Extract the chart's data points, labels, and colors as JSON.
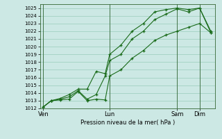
{
  "ylabel": "Pression niveau de la mer( hPa )",
  "bg_color": "#cce8e4",
  "grid_color": "#99ccbb",
  "line_color": "#1a6b1a",
  "ylim": [
    1012,
    1025.5
  ],
  "yticks": [
    1012,
    1013,
    1014,
    1015,
    1016,
    1017,
    1018,
    1019,
    1020,
    1021,
    1022,
    1023,
    1024,
    1025
  ],
  "xtick_labels": [
    "Ven",
    "Lun",
    "Sam",
    "Dim"
  ],
  "xtick_positions": [
    0.05,
    3.0,
    6.0,
    7.0
  ],
  "xlim": [
    -0.1,
    7.7
  ],
  "line1_x": [
    0.05,
    0.4,
    0.8,
    1.2,
    1.6,
    2.0,
    2.4,
    2.8,
    3.0,
    3.5,
    4.0,
    4.5,
    5.0,
    5.5,
    6.0,
    6.5,
    7.0,
    7.5
  ],
  "line1_y": [
    1012.2,
    1013.0,
    1013.1,
    1013.2,
    1014.2,
    1013.0,
    1013.2,
    1013.1,
    1016.2,
    1017.0,
    1018.5,
    1019.5,
    1020.8,
    1021.5,
    1022.0,
    1022.5,
    1023.0,
    1021.8
  ],
  "line2_x": [
    0.05,
    0.4,
    0.8,
    1.2,
    1.6,
    2.0,
    2.4,
    2.8,
    3.0,
    3.5,
    4.0,
    4.5,
    5.0,
    5.5,
    6.0,
    6.5,
    7.0,
    7.5
  ],
  "line2_y": [
    1012.2,
    1013.0,
    1013.2,
    1013.5,
    1014.3,
    1013.2,
    1013.8,
    1016.2,
    1018.2,
    1019.0,
    1021.0,
    1022.0,
    1023.5,
    1024.2,
    1024.9,
    1024.5,
    1025.0,
    1021.8
  ],
  "line3_x": [
    0.05,
    0.4,
    0.8,
    1.2,
    1.6,
    2.0,
    2.4,
    2.8,
    3.0,
    3.5,
    4.0,
    4.5,
    5.0,
    5.5,
    6.0,
    6.5,
    7.0,
    7.5
  ],
  "line3_y": [
    1012.2,
    1013.0,
    1013.3,
    1013.8,
    1014.5,
    1014.5,
    1016.8,
    1016.5,
    1019.0,
    1020.2,
    1022.0,
    1023.0,
    1024.5,
    1024.8,
    1025.0,
    1024.8,
    1025.0,
    1022.0
  ]
}
